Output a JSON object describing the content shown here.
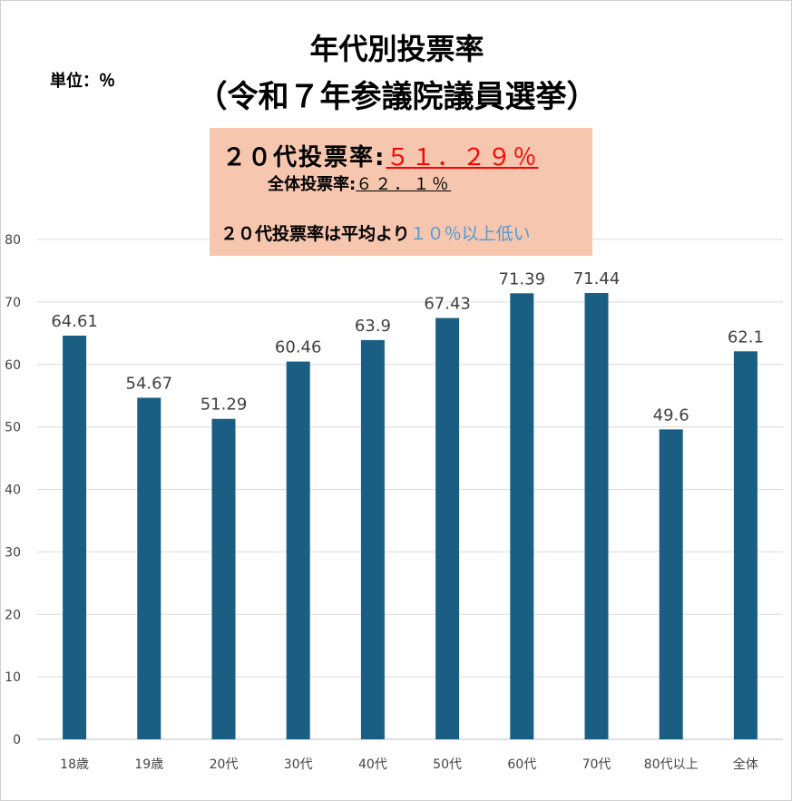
{
  "title_line1": "年代別投票率",
  "title_line2": "（令和７年参議院議員選挙）",
  "unit": "単位：％",
  "annotation": {
    "line1_label": "２０代投票率:",
    "line1_value": "５１．２９％",
    "line2_label": "全体投票率:",
    "line2_value": "６２．１％",
    "line3_label": "２０代投票率は平均より",
    "line3_value": "１０％以上低い"
  },
  "colors": {
    "bar": "#1a5e83",
    "grid": "#d9d9d9",
    "box": "#f7c6ae",
    "highlight": "#ff0000",
    "note": "#4a9ad8"
  },
  "chart_data": {
    "type": "bar",
    "title": "年代別投票率（令和７年参議院議員選挙）",
    "categories": [
      "18歳",
      "19歳",
      "20代",
      "30代",
      "40代",
      "50代",
      "60代",
      "70代",
      "80代以上",
      "全体"
    ],
    "values": [
      64.61,
      54.67,
      51.29,
      60.46,
      63.9,
      67.43,
      71.39,
      71.44,
      49.6,
      62.1
    ],
    "value_labels": [
      "64.61",
      "54.67",
      "51.29",
      "60.46",
      "63.9",
      "67.43",
      "71.39",
      "71.44",
      "49.6",
      "62.1"
    ],
    "ylim": [
      0,
      80
    ],
    "yticks": [
      0,
      10,
      20,
      30,
      40,
      50,
      60,
      70,
      80
    ],
    "grid": true,
    "xlabel": "",
    "ylabel": ""
  }
}
